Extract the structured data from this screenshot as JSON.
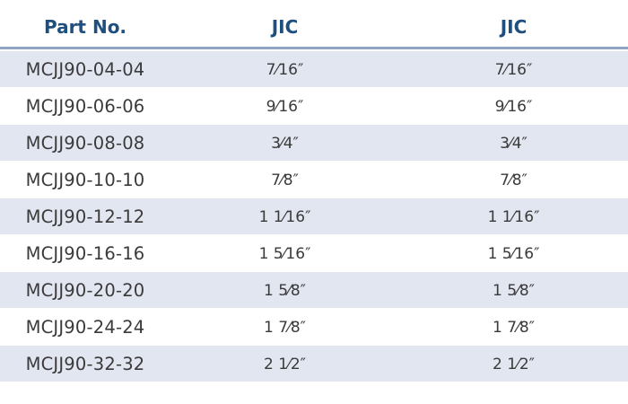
{
  "table": {
    "headers": {
      "part_no": "Part No.",
      "col_a": "JIC",
      "col_b": "JIC"
    },
    "rows": [
      {
        "part_no": "MCJJ90-04-04",
        "a": "7⁄16″",
        "b": "7⁄16″"
      },
      {
        "part_no": "MCJJ90-06-06",
        "a": "9⁄16″",
        "b": "9⁄16″"
      },
      {
        "part_no": "MCJJ90-08-08",
        "a": "3⁄4″",
        "b": "3⁄4″"
      },
      {
        "part_no": "MCJJ90-10-10",
        "a": "7⁄8″",
        "b": "7⁄8″"
      },
      {
        "part_no": "MCJJ90-12-12",
        "a": "1 1⁄16″",
        "b": "1 1⁄16″"
      },
      {
        "part_no": "MCJJ90-16-16",
        "a": "1 5⁄16″",
        "b": "1 5⁄16″"
      },
      {
        "part_no": "MCJJ90-20-20",
        "a": "1 5⁄8″",
        "b": "1 5⁄8″"
      },
      {
        "part_no": "MCJJ90-24-24",
        "a": "1 7⁄8″",
        "b": "1 7⁄8″"
      },
      {
        "part_no": "MCJJ90-32-32",
        "a": "2 1⁄2″",
        "b": "2 1⁄2″"
      }
    ]
  },
  "colors": {
    "header_text": "#1f4f7e",
    "header_rule": "#8fa3c4",
    "row_shade": "#e2e6f1",
    "body_text": "#3a3a3a"
  }
}
